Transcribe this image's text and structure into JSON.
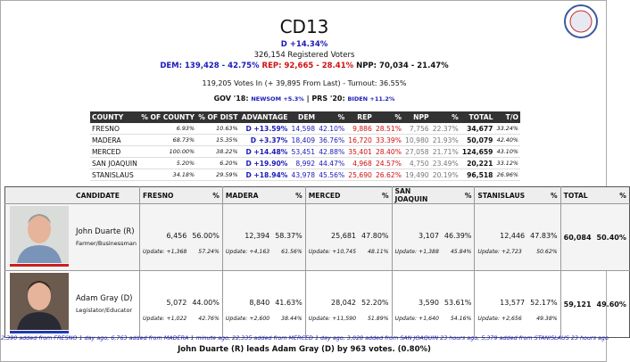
{
  "header": {
    "title": "CD13",
    "advantage": "D +14.34%",
    "registered": "326,154 Registered Voters",
    "dem": "DEM: 139,428 - 42.75%",
    "rep": "REP: 92,665 - 28.41%",
    "npp": "NPP: 70,034 - 21.47%",
    "votes_in": "119,205 Votes In (+ 39,895 From Last) - Turnout: 36.55%",
    "gov_label": "GOV '18:",
    "gov_value": "NEWSOM +5.3%",
    "separator": "|",
    "prs_label": "PRS '20:",
    "prs_value": "BIDEN +11.2%"
  },
  "county_table": {
    "columns": [
      "COUNTY",
      "% OF COUNTY",
      "% OF DIST",
      "ADVANTAGE",
      "DEM",
      "%",
      "REP",
      "%",
      "NPP",
      "%",
      "TOTAL",
      "T/O"
    ],
    "rows": [
      [
        "FRESNO",
        "6.93%",
        "10.63%",
        "D +13.59%",
        "14,598",
        "42.10%",
        "9,886",
        "28.51%",
        "7,756",
        "22.37%",
        "34,677",
        "33.24%"
      ],
      [
        "MADERA",
        "68.73%",
        "15.35%",
        "D +3.37%",
        "18,409",
        "36.76%",
        "16,720",
        "33.39%",
        "10,980",
        "21.93%",
        "50,079",
        "42.40%"
      ],
      [
        "MERCED",
        "100.00%",
        "38.22%",
        "D +14.48%",
        "53,451",
        "42.88%",
        "35,401",
        "28.40%",
        "27,058",
        "21.71%",
        "124,659",
        "43.10%"
      ],
      [
        "SAN JOAQUIN",
        "5.20%",
        "6.20%",
        "D +19.90%",
        "8,992",
        "44.47%",
        "4,968",
        "24.57%",
        "4,750",
        "23.49%",
        "20,221",
        "33.12%"
      ],
      [
        "STANISLAUS",
        "34.18%",
        "29.59%",
        "D +18.94%",
        "43,978",
        "45.56%",
        "25,690",
        "26.62%",
        "19,490",
        "20.19%",
        "96,518",
        "26.96%"
      ]
    ]
  },
  "candidate_table": {
    "candidate_header": "CANDIDATE",
    "counties": [
      "FRESNO",
      "MADERA",
      "MERCED",
      "SAN JOAQUIN",
      "STANISLAUS"
    ],
    "pct_header": "%",
    "total_header": "TOTAL",
    "candidates": [
      {
        "name": "John Duarte (R)",
        "occupation": "Farmer/Businessman",
        "results": [
          {
            "votes": "6,456",
            "pct": "56.00%",
            "update": "Update: +1,368",
            "update_pct": "57.24%"
          },
          {
            "votes": "12,394",
            "pct": "58.37%",
            "update": "Update: +4,163",
            "update_pct": "61.56%"
          },
          {
            "votes": "25,681",
            "pct": "47.80%",
            "update": "Update: +10,745",
            "update_pct": "48.11%"
          },
          {
            "votes": "3,107",
            "pct": "46.39%",
            "update": "Update: +1,388",
            "update_pct": "45.84%"
          },
          {
            "votes": "12,446",
            "pct": "47.83%",
            "update": "Update: +2,723",
            "update_pct": "50.62%"
          }
        ],
        "total": "60,084",
        "total_pct": "50.40%"
      },
      {
        "name": "Adam Gray (D)",
        "occupation": "Legislator/Educator",
        "results": [
          {
            "votes": "5,072",
            "pct": "44.00%",
            "update": "Update: +1,022",
            "update_pct": "42.76%"
          },
          {
            "votes": "8,840",
            "pct": "41.63%",
            "update": "Update: +2,600",
            "update_pct": "38.44%"
          },
          {
            "votes": "28,042",
            "pct": "52.20%",
            "update": "Update: +11,590",
            "update_pct": "51.89%"
          },
          {
            "votes": "3,590",
            "pct": "53.61%",
            "update": "Update: +1,640",
            "update_pct": "54.16%"
          },
          {
            "votes": "13,577",
            "pct": "52.17%",
            "update": "Update: +2,656",
            "update_pct": "49.38%"
          }
        ],
        "total": "59,121",
        "total_pct": "49.60%"
      }
    ]
  },
  "footer": {
    "added": "2,390 added from FRESNO 1 day ago, 6,763 added from MADERA 1 minute ago, 22,335 added from MERCED 1 day ago, 3,028 added from SAN JOAQUIN 23 hours ago, 5,379 added from STANISLAUS 23 hours ago",
    "leader": "John Duarte (R) leads Adam Gray (D) by 963 votes. (0.80%)"
  }
}
